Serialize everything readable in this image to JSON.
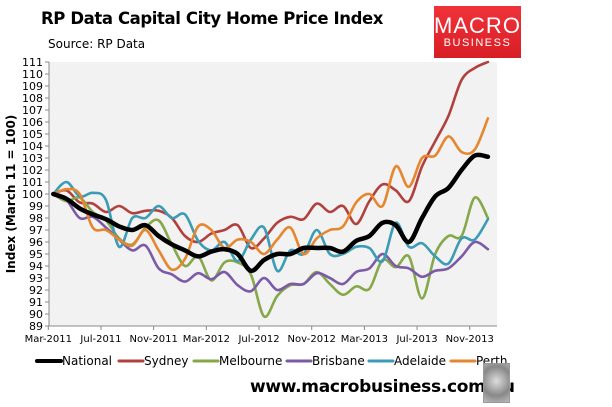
{
  "header": {
    "title": "RP Data Capital City Home Price Index",
    "source": "Source: RP Data"
  },
  "logo": {
    "line1": "MACRO",
    "line2": "BUSINESS",
    "color": "#e8262d"
  },
  "footer": {
    "url": "www.macrobusiness.com.au",
    "mascot": "wolf-icon"
  },
  "chart_data": {
    "type": "line",
    "title": "RP Data Capital City Home Price Index",
    "subtitle": "Source: RP Data",
    "xlabel": "",
    "ylabel": "Index (March 11 = 100)",
    "ylim": [
      89,
      111
    ],
    "yticks": [
      89,
      90,
      91,
      92,
      93,
      94,
      95,
      96,
      97,
      98,
      99,
      100,
      101,
      102,
      103,
      104,
      105,
      106,
      107,
      108,
      109,
      110,
      111
    ],
    "xtick_labels": [
      "Mar-2011",
      "Jul-2011",
      "Nov-2011",
      "Mar-2012",
      "Jul-2012",
      "Nov-2012",
      "Mar-2013",
      "Jul-2013",
      "Nov-2013"
    ],
    "x_start": "Mar-2011",
    "x_end": "Dec-2013",
    "x_frequency": "monthly",
    "grid": false,
    "legend": "bottom",
    "series": [
      {
        "name": "National",
        "color": "#000000",
        "values": [
          100,
          99.6,
          98.8,
          98.3,
          97.9,
          97.3,
          97.0,
          97.4,
          96.5,
          95.8,
          95.3,
          94.8,
          95.2,
          95.4,
          95.0,
          93.6,
          94.5,
          95.0,
          95.0,
          95.5,
          95.5,
          95.5,
          95.2,
          96.1,
          96.5,
          97.6,
          97.4,
          96.0,
          98.0,
          99.8,
          100.5,
          102.0,
          103.2,
          103.1
        ]
      },
      {
        "name": "Sydney",
        "color": "#b0413e",
        "values": [
          100,
          100.3,
          99.3,
          99.2,
          98.5,
          99.0,
          98.4,
          98.6,
          98.6,
          98.0,
          96.5,
          96.0,
          96.7,
          97.0,
          97.4,
          95.5,
          96.3,
          97.6,
          98.1,
          97.9,
          99.2,
          98.5,
          99.0,
          97.5,
          99.4,
          100.8,
          100.3,
          99.4,
          102.3,
          104.4,
          106.5,
          109.5,
          110.5,
          111.0
        ]
      },
      {
        "name": "Melbourne",
        "color": "#86a84a",
        "values": [
          100,
          99.4,
          99.7,
          98.5,
          97.8,
          96.3,
          95.8,
          97.2,
          97.8,
          95.8,
          94.0,
          94.8,
          92.8,
          94.3,
          94.3,
          93.3,
          89.8,
          91.5,
          92.4,
          92.5,
          93.5,
          92.5,
          91.6,
          92.3,
          92.1,
          94.5,
          93.9,
          94.8,
          91.3,
          95.0,
          96.5,
          96.5,
          99.7,
          98.0
        ]
      },
      {
        "name": "Brisbane",
        "color": "#7b5aa6",
        "values": [
          100,
          99.5,
          98.0,
          98.1,
          97.2,
          96.2,
          95.3,
          95.7,
          93.8,
          93.3,
          92.7,
          93.4,
          92.9,
          93.5,
          92.4,
          91.9,
          93.0,
          92.0,
          92.5,
          92.5,
          93.4,
          93.0,
          92.5,
          93.5,
          93.8,
          95.0,
          94.0,
          93.8,
          93.1,
          93.6,
          93.8,
          94.8,
          96.0,
          95.4
        ]
      },
      {
        "name": "Adelaide",
        "color": "#3c9bb5",
        "values": [
          100,
          101.0,
          99.8,
          100.1,
          99.5,
          95.6,
          98.0,
          98.0,
          99.0,
          98.0,
          98.3,
          96.1,
          95.3,
          96.0,
          94.4,
          96.2,
          97.2,
          93.6,
          95.3,
          95.0,
          97.0,
          95.0,
          95.0,
          95.6,
          95.5,
          94.4,
          97.6,
          95.6,
          95.9,
          94.8,
          94.2,
          96.3,
          96.2,
          97.9
        ]
      },
      {
        "name": "Perth",
        "color": "#e6862e",
        "values": [
          100,
          100.4,
          100.0,
          97.2,
          97.0,
          96.2,
          95.7,
          97.0,
          95.3,
          93.7,
          94.6,
          97.3,
          97.0,
          95.5,
          96.2,
          96.0,
          95.0,
          96.2,
          97.2,
          95.0,
          96.3,
          97.0,
          97.3,
          99.3,
          100.0,
          99.0,
          102.3,
          100.6,
          103.0,
          103.2,
          104.8,
          103.5,
          103.7,
          106.3
        ]
      }
    ]
  }
}
